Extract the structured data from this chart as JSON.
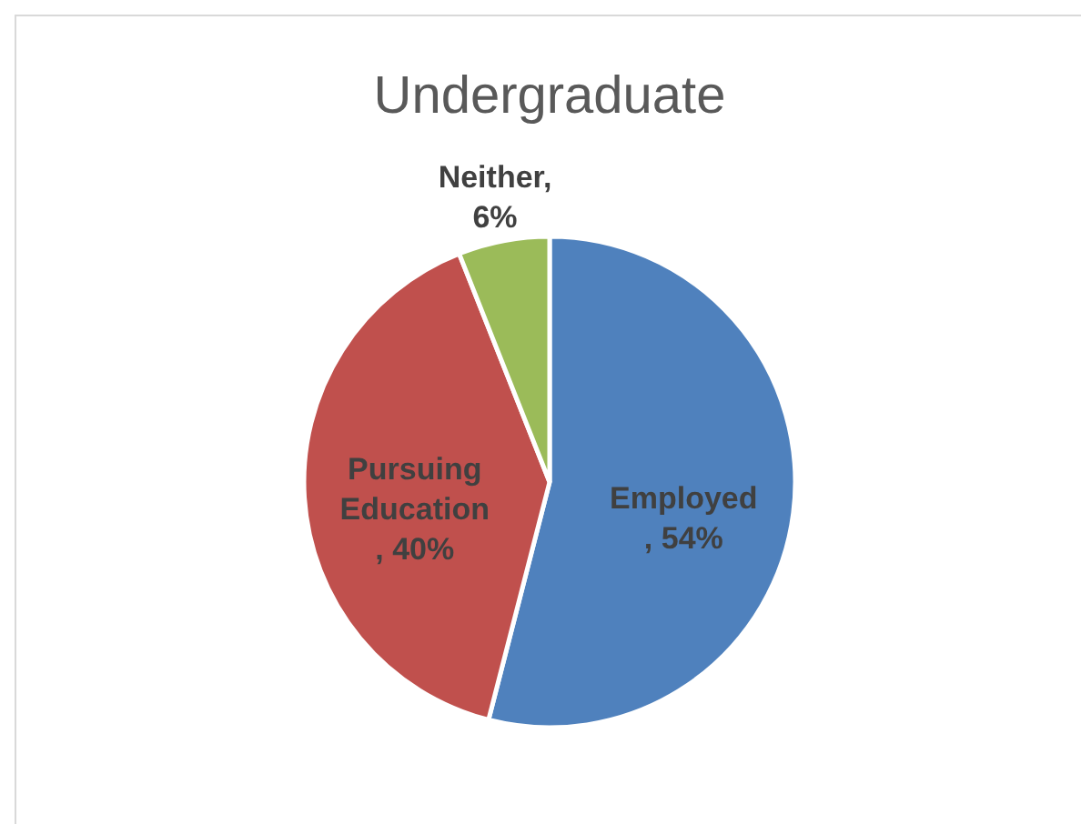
{
  "chart_data": {
    "type": "pie",
    "title": "Undergraduate",
    "categories": [
      "Employed",
      "Pursuing Education",
      "Neither"
    ],
    "values": [
      54,
      40,
      6
    ],
    "value_labels": [
      ", 54%",
      ", 40%",
      ", 6%"
    ],
    "colors": [
      "#4f81bd",
      "#c0504d",
      "#9bbb59"
    ],
    "legend": false
  }
}
